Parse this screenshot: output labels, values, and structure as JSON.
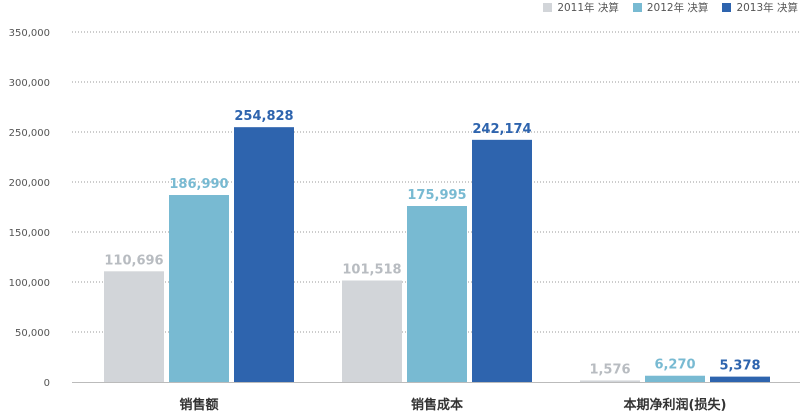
{
  "chart_data": {
    "type": "bar",
    "categories": [
      "销售额",
      "销售成本",
      "本期净利润(损失)"
    ],
    "series": [
      {
        "name": "2011年 决算",
        "color": "#d2d5d9",
        "label_color": "#b8bcc1",
        "values": [
          110696,
          101518,
          1576
        ],
        "labels": [
          "110,696",
          "101,518",
          "1,576"
        ]
      },
      {
        "name": "2012年 决算",
        "color": "#78bad2",
        "label_color": "#78bad2",
        "values": [
          186990,
          175995,
          6270
        ],
        "labels": [
          "186,990",
          "175,995",
          "6,270"
        ]
      },
      {
        "name": "2013年 决算",
        "color": "#2e64ae",
        "label_color": "#2e64ae",
        "values": [
          254828,
          242174,
          5378
        ],
        "labels": [
          "254,828",
          "242,174",
          "5,378"
        ]
      }
    ],
    "ylim": [
      0,
      350000
    ],
    "yticks": [
      0,
      50000,
      100000,
      150000,
      200000,
      250000,
      300000,
      350000
    ],
    "ytick_labels": [
      "0",
      "50,000",
      "100,000",
      "150,000",
      "200,000",
      "250,000",
      "300,000",
      "350,000"
    ],
    "grid": true,
    "legend": "top-right"
  }
}
